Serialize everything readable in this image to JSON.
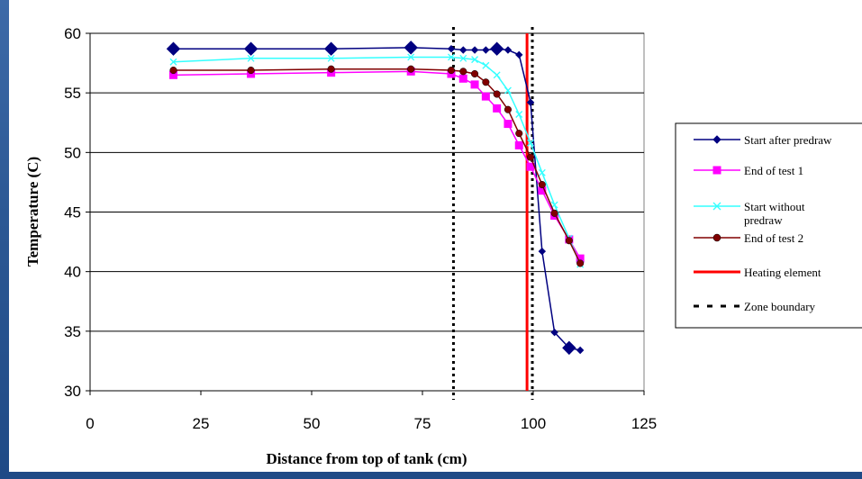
{
  "chart_data": {
    "type": "line",
    "xlabel": "Distance from top of tank (cm)",
    "ylabel": "Temperature (C)",
    "xlim": [
      0,
      125
    ],
    "ylim": [
      30,
      60
    ],
    "xticks": [
      0,
      25,
      50,
      75,
      100,
      125
    ],
    "yticks": [
      30,
      35,
      40,
      45,
      50,
      55,
      60
    ],
    "grid": "horizontal",
    "legend_position": "right",
    "series": [
      {
        "name": "Start after predraw",
        "color": "#000080",
        "marker": "diamond",
        "x": [
          18.8,
          36.3,
          54.4,
          72.4,
          81.5,
          84.2,
          86.8,
          89.3,
          91.8,
          94.3,
          96.8,
          99.4,
          102.0,
          104.8,
          108.1,
          110.6
        ],
        "y": [
          58.7,
          58.7,
          58.7,
          58.8,
          58.7,
          58.6,
          58.6,
          58.6,
          58.7,
          58.6,
          58.2,
          54.2,
          41.7,
          34.9,
          33.6,
          33.4
        ],
        "large_markers": [
          0,
          1,
          2,
          3,
          8,
          14
        ]
      },
      {
        "name": "End of test 1",
        "color": "#ff00ff",
        "marker": "square",
        "x": [
          18.8,
          36.3,
          54.4,
          72.4,
          81.5,
          84.2,
          86.8,
          89.3,
          91.8,
          94.3,
          96.8,
          99.4,
          102.0,
          104.8,
          108.1,
          110.6
        ],
        "y": [
          56.5,
          56.6,
          56.7,
          56.8,
          56.6,
          56.2,
          55.7,
          54.7,
          53.7,
          52.4,
          50.6,
          48.8,
          46.8,
          44.7,
          42.7,
          41.1
        ]
      },
      {
        "name": "Start without predraw",
        "color": "#33ffff",
        "marker": "x",
        "x": [
          18.8,
          36.3,
          54.4,
          72.4,
          81.5,
          84.2,
          86.8,
          89.3,
          91.8,
          94.3,
          96.8,
          99.4,
          102.0,
          104.8,
          108.1,
          110.6
        ],
        "y": [
          57.6,
          57.9,
          57.9,
          58.0,
          58.0,
          57.9,
          57.8,
          57.3,
          56.5,
          55.2,
          53.2,
          50.8,
          48.3,
          45.6,
          42.8,
          40.6
        ]
      },
      {
        "name": "End of test 2",
        "color": "#800000",
        "marker": "circle",
        "x": [
          18.8,
          36.3,
          54.4,
          72.4,
          81.5,
          84.2,
          86.8,
          89.3,
          91.8,
          94.3,
          96.8,
          99.4,
          102.0,
          104.8,
          108.1,
          110.6
        ],
        "y": [
          56.9,
          56.9,
          57.0,
          57.0,
          56.9,
          56.8,
          56.6,
          55.9,
          54.9,
          53.6,
          51.6,
          49.6,
          47.3,
          44.9,
          42.6,
          40.7
        ]
      }
    ],
    "reference_lines": [
      {
        "name": "Heating element",
        "color": "#ff0000",
        "style": "solid",
        "x": 98.6
      },
      {
        "name": "Zone boundary",
        "color": "#000000",
        "style": "dotted",
        "x": [
          82.0,
          99.8
        ]
      }
    ]
  }
}
